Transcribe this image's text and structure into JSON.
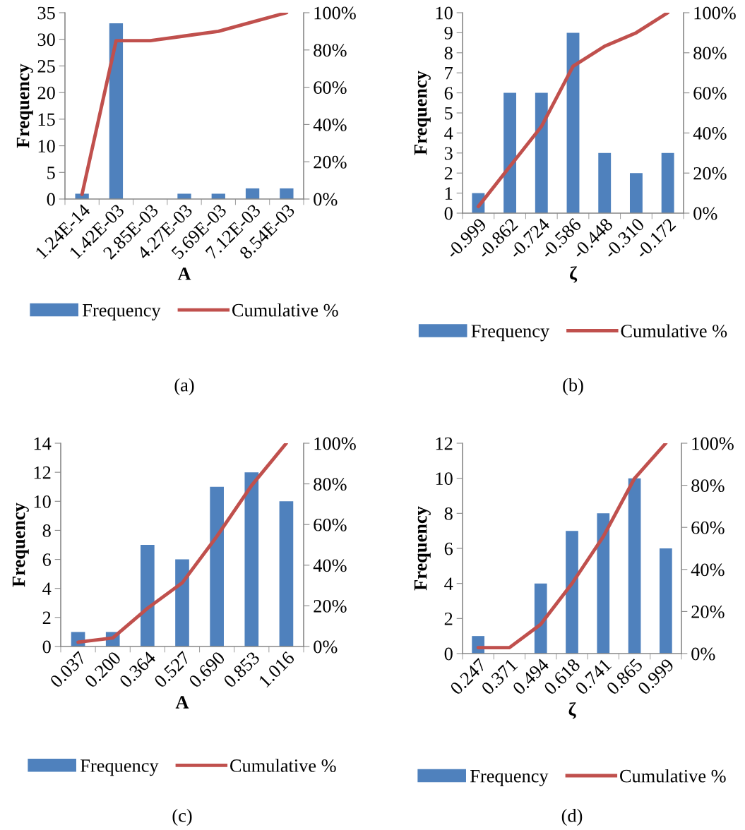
{
  "chart_data": [
    {
      "type": "bar",
      "categories": [
        "1.24E-14",
        "1.42E-03",
        "2.85E-03",
        "4.27E-03",
        "5.69E-03",
        "7.12E-03",
        "8.54E-03"
      ],
      "xlabel": "A",
      "ylabel": "Frequency",
      "ylim": [
        0,
        35
      ],
      "yticks": [
        0,
        5,
        10,
        15,
        20,
        25,
        30,
        35
      ],
      "y2lim": [
        0,
        100
      ],
      "y2ticks": [
        {
          "value": 0,
          "label": "0%"
        },
        {
          "value": 20,
          "label": "20%"
        },
        {
          "value": 40,
          "label": "40%"
        },
        {
          "value": 60,
          "label": "60%"
        },
        {
          "value": 80,
          "label": "80%"
        },
        {
          "value": 100,
          "label": "100%"
        }
      ],
      "grid": false,
      "legend": "bottom",
      "annotations": [
        "(a)"
      ],
      "series": [
        {
          "name": "Frequency",
          "color": "#4f81bd",
          "values": [
            1,
            33,
            0,
            1,
            1,
            2,
            2
          ]
        },
        {
          "name": "Cumulative %",
          "type": "line",
          "axis": "y2",
          "color": "#c0504d",
          "values": [
            2.5,
            85,
            85,
            87.5,
            90,
            95,
            100
          ]
        }
      ]
    },
    {
      "type": "bar",
      "categories": [
        "-0.999",
        "-0.862",
        "-0.724",
        "-0.586",
        "-0.448",
        "-0.310",
        "-0.172"
      ],
      "xlabel": "ζ",
      "ylabel": "Frequency",
      "ylim": [
        0,
        10
      ],
      "yticks": [
        0,
        1,
        2,
        3,
        4,
        5,
        6,
        7,
        8,
        9,
        10
      ],
      "y2lim": [
        0,
        100
      ],
      "y2ticks": [
        {
          "value": 0,
          "label": "0%"
        },
        {
          "value": 20,
          "label": "20%"
        },
        {
          "value": 40,
          "label": "40%"
        },
        {
          "value": 60,
          "label": "60%"
        },
        {
          "value": 80,
          "label": "80%"
        },
        {
          "value": 100,
          "label": "100%"
        }
      ],
      "grid": false,
      "legend": "bottom",
      "annotations": [
        "(b)"
      ],
      "series": [
        {
          "name": "Frequency",
          "color": "#4f81bd",
          "values": [
            1,
            6,
            6,
            9,
            3,
            2,
            3
          ]
        },
        {
          "name": "Cumulative %",
          "type": "line",
          "axis": "y2",
          "color": "#c0504d",
          "values": [
            3.3,
            23.3,
            43.3,
            73.3,
            83.3,
            90,
            100
          ]
        }
      ]
    },
    {
      "type": "bar",
      "categories": [
        "0.037",
        "0.200",
        "0.364",
        "0.527",
        "0.690",
        "0.853",
        "1.016"
      ],
      "xlabel": "A",
      "ylabel": "Frequency",
      "ylim": [
        0,
        14
      ],
      "yticks": [
        0,
        2,
        4,
        6,
        8,
        10,
        12,
        14
      ],
      "y2lim": [
        0,
        100
      ],
      "y2ticks": [
        {
          "value": 0,
          "label": "0%"
        },
        {
          "value": 20,
          "label": "20%"
        },
        {
          "value": 40,
          "label": "40%"
        },
        {
          "value": 60,
          "label": "60%"
        },
        {
          "value": 80,
          "label": "80%"
        },
        {
          "value": 100,
          "label": "100%"
        }
      ],
      "grid": false,
      "legend": "bottom",
      "annotations": [
        "(c)"
      ],
      "series": [
        {
          "name": "Frequency",
          "color": "#4f81bd",
          "values": [
            1,
            1,
            7,
            6,
            11,
            12,
            10
          ]
        },
        {
          "name": "Cumulative %",
          "type": "line",
          "axis": "y2",
          "color": "#c0504d",
          "values": [
            2.1,
            4.2,
            18.8,
            31.3,
            54.2,
            79.2,
            100
          ]
        }
      ]
    },
    {
      "type": "bar",
      "categories": [
        "0.247",
        "0.371",
        "0.494",
        "0.618",
        "0.741",
        "0.865",
        "0.999"
      ],
      "xlabel": "ζ",
      "ylabel": "Frequency",
      "ylim": [
        0,
        12
      ],
      "yticks": [
        0,
        2,
        4,
        6,
        8,
        10,
        12
      ],
      "y2lim": [
        0,
        100
      ],
      "y2ticks": [
        {
          "value": 0,
          "label": "0%"
        },
        {
          "value": 20,
          "label": "20%"
        },
        {
          "value": 40,
          "label": "40%"
        },
        {
          "value": 60,
          "label": "60%"
        },
        {
          "value": 80,
          "label": "80%"
        },
        {
          "value": 100,
          "label": "100%"
        }
      ],
      "grid": false,
      "legend": "bottom",
      "annotations": [
        "(d)"
      ],
      "series": [
        {
          "name": "Frequency",
          "color": "#4f81bd",
          "values": [
            1,
            0,
            4,
            7,
            8,
            10,
            6
          ]
        },
        {
          "name": "Cumulative %",
          "type": "line",
          "axis": "y2",
          "color": "#c0504d",
          "values": [
            2.8,
            2.8,
            13.9,
            33.3,
            55.6,
            83.3,
            100
          ]
        }
      ]
    }
  ]
}
